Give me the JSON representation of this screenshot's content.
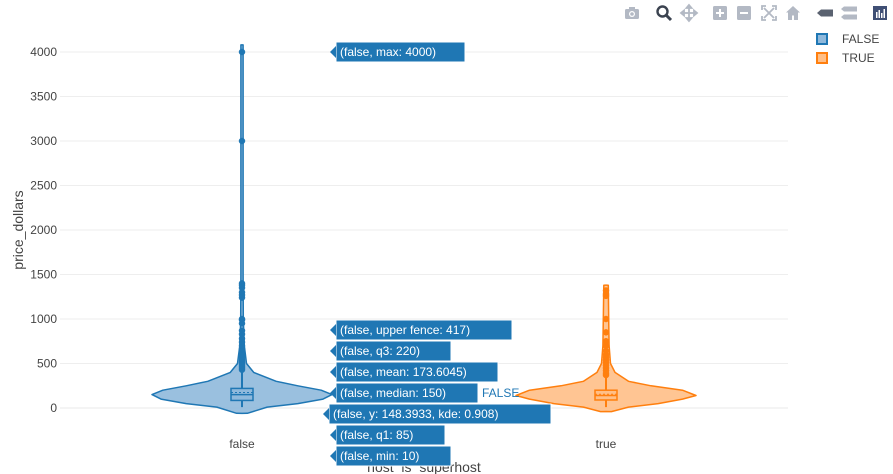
{
  "chart_data": {
    "type": "violin",
    "xlabel": "host_is_superhost",
    "ylabel": "price_dollars",
    "ylim": [
      -120,
      4130
    ],
    "y_ticks": [
      0,
      500,
      1000,
      1500,
      2000,
      2500,
      3000,
      3500,
      4000
    ],
    "y_tick_labels": [
      "0",
      "500",
      "1000",
      "1500",
      "2000",
      "2500",
      "3000",
      "3500",
      "4000"
    ],
    "categories": [
      "false",
      "true"
    ],
    "grid": true,
    "legend_position": "top-right",
    "series": [
      {
        "name": "FALSE",
        "category": "false",
        "color": "#1f77b4",
        "fill": "#8fb9dc",
        "stats": {
          "min": 10,
          "q1": 85,
          "median": 150,
          "mean": 173.6045,
          "q3": 220,
          "upper_fence": 417,
          "max": 4000
        },
        "violin_range": [
          -60,
          4080
        ],
        "density": [
          [
            -60,
            0.06
          ],
          [
            10,
            0.28
          ],
          [
            50,
            0.62
          ],
          [
            100,
            0.9
          ],
          [
            150,
            1.0
          ],
          [
            200,
            0.88
          ],
          [
            250,
            0.62
          ],
          [
            300,
            0.38
          ],
          [
            400,
            0.13
          ],
          [
            500,
            0.05
          ],
          [
            700,
            0.025
          ],
          [
            1000,
            0.015
          ],
          [
            1500,
            0.012
          ],
          [
            4080,
            0.012
          ]
        ],
        "outliers": [
          430,
          450,
          470,
          490,
          510,
          530,
          550,
          575,
          600,
          630,
          660,
          700,
          740,
          780,
          830,
          870,
          950,
          990,
          1000,
          1240,
          1270,
          1300,
          1350,
          1380,
          1400,
          3000,
          4000
        ]
      },
      {
        "name": "TRUE",
        "category": "true",
        "color": "#ff7f0e",
        "fill": "#ffbf87",
        "stats": {
          "min": 10,
          "q1": 90,
          "median": 140,
          "mean": 155,
          "q3": 200,
          "upper_fence": 360,
          "max": 1320
        },
        "violin_range": [
          -40,
          1380
        ],
        "density": [
          [
            -40,
            0.06
          ],
          [
            10,
            0.25
          ],
          [
            50,
            0.58
          ],
          [
            100,
            0.85
          ],
          [
            140,
            1.0
          ],
          [
            200,
            0.85
          ],
          [
            250,
            0.5
          ],
          [
            300,
            0.25
          ],
          [
            400,
            0.1
          ],
          [
            500,
            0.05
          ],
          [
            700,
            0.035
          ],
          [
            1000,
            0.03
          ],
          [
            1380,
            0.025
          ]
        ],
        "outliers": [
          370,
          390,
          420,
          450,
          480,
          510,
          540,
          570,
          600,
          640,
          700,
          750,
          850,
          1000,
          1260,
          1280,
          1320
        ]
      }
    ],
    "hover_labels": [
      {
        "text": "(false, max: 4000)",
        "y": 4000
      },
      {
        "text": "(false, upper fence: 417)",
        "y": 417
      },
      {
        "text": "(false, q3: 220)",
        "y": 220
      },
      {
        "text": "(false, mean: 173.6045)",
        "y": 173.6045
      },
      {
        "text": "(false, median: 150)",
        "y": 150
      },
      {
        "text": "(false, y: 148.3933, kde: 0.908)",
        "y": 148.3933
      },
      {
        "text": "(false, q1: 85)",
        "y": 85
      },
      {
        "text": "(false, min: 10)",
        "y": 10
      }
    ],
    "hover_trace_name": "FALSE"
  },
  "modebar": {
    "icons": [
      "camera-icon",
      "zoom-icon",
      "pan-icon",
      "zoom-in-icon",
      "zoom-out-icon",
      "autoscale-icon",
      "reset-axes-icon",
      "hover-closest-icon",
      "hover-compare-icon",
      "plotly-logo-icon"
    ],
    "color": "#b3b9c4"
  }
}
